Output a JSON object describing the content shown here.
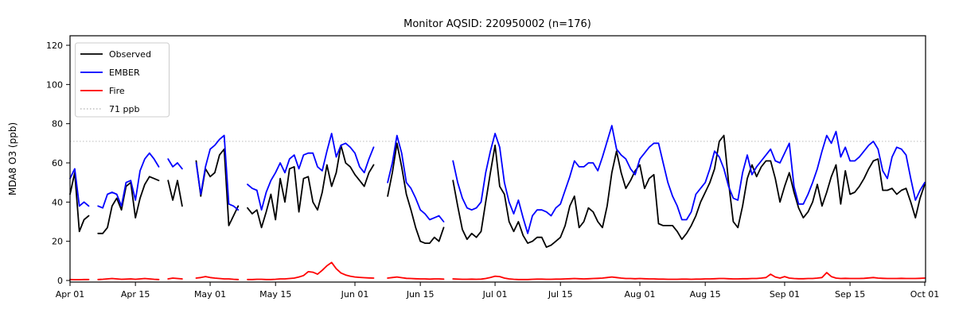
{
  "title": "Monitor AQSID: 220950002 (n=176)",
  "colors": {
    "observed": "#000000",
    "ember": "#0000ff",
    "fire": "#ff0000",
    "threshold": "#c8c8c8",
    "axis": "#000000",
    "background": "#ffffff"
  },
  "legend": {
    "items": [
      {
        "label": "Observed",
        "color": "#000000",
        "dash": ""
      },
      {
        "label": "EMBER",
        "color": "#0000ff",
        "dash": ""
      },
      {
        "label": "Fire",
        "color": "#ff0000",
        "dash": ""
      },
      {
        "label": "71 ppb",
        "color": "#c8c8c8",
        "dash": "1.5 2.5"
      }
    ]
  },
  "chart_data": {
    "type": "line",
    "title": "Monitor AQSID: 220950002 (n=176)",
    "xlabel": "",
    "ylabel": "MDA8 O3 (ppb)",
    "n_points": 176,
    "x_unit": "days since Apr 01 (daily series, Apr 01 - Oct 01)",
    "x_range_days": [
      0,
      183
    ],
    "ylim": [
      0,
      120
    ],
    "yticks": [
      0,
      20,
      40,
      60,
      80,
      100,
      120
    ],
    "xticks": [
      {
        "label": "Apr 01",
        "day": 0
      },
      {
        "label": "Apr 15",
        "day": 14
      },
      {
        "label": "May 01",
        "day": 30
      },
      {
        "label": "May 15",
        "day": 44
      },
      {
        "label": "Jun 01",
        "day": 61
      },
      {
        "label": "Jun 15",
        "day": 75
      },
      {
        "label": "Jul 01",
        "day": 91
      },
      {
        "label": "Jul 15",
        "day": 105
      },
      {
        "label": "Aug 01",
        "day": 122
      },
      {
        "label": "Aug 15",
        "day": 136
      },
      {
        "label": "Sep 01",
        "day": 153
      },
      {
        "label": "Sep 15",
        "day": 167
      },
      {
        "label": "Oct 01",
        "day": 183
      }
    ],
    "reference_line": {
      "label": "71 ppb",
      "value": 71,
      "style": "dotted",
      "color": "#c8c8c8"
    },
    "missing_days_note": "null entries = missing observations (gaps in all series)",
    "series": [
      {
        "name": "Observed",
        "color": "#000000",
        "values": [
          44,
          55,
          25,
          31,
          33,
          null,
          24,
          24,
          27,
          38,
          42,
          36,
          48,
          50,
          32,
          42,
          49,
          53,
          52,
          51,
          null,
          51,
          41,
          51,
          38,
          null,
          null,
          61,
          43,
          57,
          53,
          55,
          64,
          67,
          28,
          33,
          38,
          null,
          37,
          34,
          36,
          27,
          35,
          44,
          31,
          52,
          40,
          57,
          58,
          35,
          52,
          53,
          40,
          36,
          45,
          59,
          48,
          55,
          69,
          60,
          58,
          54,
          51,
          48,
          55,
          59,
          null,
          null,
          43,
          55,
          70,
          58,
          44,
          36,
          27,
          20,
          19,
          19,
          22,
          20,
          27,
          null,
          51,
          38,
          26,
          21,
          24,
          22,
          25,
          40,
          55,
          69,
          48,
          44,
          30,
          25,
          30,
          23,
          19,
          20,
          22,
          22,
          17,
          18,
          20,
          22,
          28,
          38,
          43,
          27,
          30,
          37,
          35,
          30,
          27,
          38,
          55,
          66,
          55,
          47,
          51,
          56,
          59,
          47,
          52,
          54,
          29,
          28,
          28,
          28,
          25,
          21,
          24,
          28,
          33,
          40,
          45,
          50,
          57,
          71,
          74,
          50,
          30,
          27,
          38,
          52,
          59,
          53,
          58,
          61,
          61,
          52,
          40,
          48,
          55,
          45,
          37,
          32,
          35,
          40,
          49,
          38,
          45,
          53,
          59,
          39,
          56,
          44,
          45,
          48,
          52,
          57,
          61,
          62,
          46,
          46,
          47,
          44,
          46,
          47,
          40,
          32,
          42,
          49
        ]
      },
      {
        "name": "EMBER",
        "color": "#0000ff",
        "values": [
          52,
          57,
          38,
          40,
          38,
          null,
          38,
          37,
          44,
          45,
          44,
          38,
          50,
          51,
          41,
          56,
          62,
          65,
          62,
          58,
          null,
          62,
          58,
          60,
          57,
          null,
          null,
          60,
          44,
          58,
          67,
          69,
          72,
          74,
          39,
          38,
          36,
          null,
          49,
          47,
          46,
          36,
          45,
          51,
          55,
          60,
          55,
          62,
          64,
          57,
          64,
          65,
          65,
          58,
          56,
          66,
          75,
          63,
          69,
          70,
          68,
          65,
          58,
          55,
          62,
          68,
          null,
          null,
          50,
          60,
          74,
          65,
          50,
          47,
          42,
          36,
          34,
          31,
          32,
          33,
          30,
          null,
          61,
          50,
          42,
          37,
          36,
          37,
          40,
          55,
          66,
          75,
          68,
          50,
          40,
          34,
          41,
          32,
          24,
          33,
          36,
          36,
          35,
          33,
          37,
          39,
          46,
          53,
          61,
          58,
          58,
          60,
          60,
          56,
          63,
          71,
          79,
          67,
          64,
          62,
          57,
          54,
          62,
          65,
          68,
          70,
          70,
          60,
          50,
          43,
          38,
          31,
          31,
          35,
          44,
          47,
          50,
          57,
          66,
          63,
          57,
          48,
          42,
          41,
          55,
          64,
          54,
          58,
          61,
          64,
          67,
          61,
          60,
          65,
          70,
          48,
          39,
          39,
          44,
          50,
          57,
          66,
          74,
          70,
          76,
          63,
          68,
          61,
          61,
          63,
          66,
          69,
          71,
          67,
          56,
          52,
          63,
          68,
          67,
          64,
          52,
          41,
          46,
          50
        ]
      },
      {
        "name": "Fire",
        "color": "#ff0000",
        "values": [
          0.5,
          0.4,
          0.4,
          0.5,
          0.5,
          null,
          0.5,
          0.6,
          0.8,
          1.0,
          0.8,
          0.6,
          0.7,
          0.8,
          0.6,
          0.8,
          1.0,
          0.8,
          0.6,
          0.5,
          null,
          0.8,
          1.2,
          1.0,
          0.8,
          null,
          null,
          1.2,
          1.5,
          2.0,
          1.5,
          1.2,
          1.0,
          0.8,
          0.8,
          0.6,
          0.5,
          null,
          0.5,
          0.5,
          0.6,
          0.6,
          0.5,
          0.5,
          0.6,
          0.8,
          0.8,
          1.0,
          1.2,
          1.8,
          2.5,
          4.5,
          4.2,
          3.2,
          5.2,
          7.5,
          9.2,
          6.0,
          3.8,
          2.8,
          2.2,
          1.8,
          1.6,
          1.4,
          1.3,
          1.2,
          null,
          null,
          1.2,
          1.5,
          1.8,
          1.4,
          1.1,
          1.0,
          0.9,
          0.8,
          0.8,
          0.7,
          0.8,
          0.8,
          0.7,
          null,
          0.8,
          0.7,
          0.6,
          0.6,
          0.7,
          0.6,
          0.7,
          1.0,
          1.5,
          2.2,
          2.0,
          1.2,
          0.8,
          0.6,
          0.5,
          0.5,
          0.5,
          0.6,
          0.7,
          0.7,
          0.6,
          0.6,
          0.7,
          0.7,
          0.8,
          0.9,
          1.0,
          0.9,
          0.8,
          0.9,
          1.0,
          1.1,
          1.2,
          1.5,
          1.8,
          1.5,
          1.2,
          1.0,
          1.0,
          0.9,
          1.0,
          0.9,
          0.8,
          0.8,
          0.7,
          0.7,
          0.6,
          0.6,
          0.6,
          0.7,
          0.7,
          0.6,
          0.7,
          0.7,
          0.8,
          0.8,
          0.9,
          1.0,
          1.0,
          0.9,
          0.8,
          0.8,
          0.9,
          0.9,
          1.0,
          1.0,
          1.2,
          1.5,
          3.2,
          1.8,
          1.2,
          2.0,
          1.2,
          1.0,
          0.9,
          0.9,
          1.0,
          1.0,
          1.2,
          1.5,
          4.0,
          2.0,
          1.2,
          1.0,
          1.1,
          1.0,
          1.0,
          1.0,
          1.1,
          1.3,
          1.5,
          1.2,
          1.1,
          1.0,
          1.0,
          1.0,
          1.1,
          1.0,
          1.0,
          1.0,
          1.1,
          1.2
        ]
      }
    ],
    "legend_position": "upper left",
    "grid": false
  }
}
